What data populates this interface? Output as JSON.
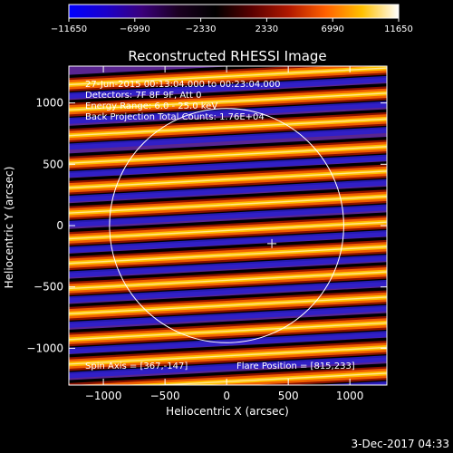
{
  "chart_data": {
    "type": "heatmap",
    "title": "Reconstructed RHESSI Image",
    "xlabel": "Heliocentric X (arcsec)",
    "ylabel": "Heliocentric Y (arcsec)",
    "xlim": [
      -1280,
      1300
    ],
    "ylim": [
      -1300,
      1300
    ],
    "xticks": [
      -1000,
      -500,
      0,
      500,
      1000
    ],
    "yticks": [
      -1000,
      -500,
      0,
      500,
      1000
    ],
    "xtick_labels": [
      "−1000",
      "−500",
      "0",
      "500",
      "1000"
    ],
    "ytick_labels": [
      "−1000",
      "−500",
      "0",
      "500",
      "1000"
    ],
    "colorbar": {
      "ticks": [
        -11650,
        -6990,
        -2330,
        2330,
        6990,
        11650
      ],
      "tick_labels": [
        "−11650",
        "−6990",
        "−2330",
        "2330",
        "6990",
        "11650"
      ],
      "range": [
        -11650,
        11650
      ],
      "colors": [
        "#0000ff",
        "#1a00cc",
        "#3a007a",
        "#1a0020",
        "#000000",
        "#5a0000",
        "#b01800",
        "#ff6000",
        "#ffc000",
        "#ffffff"
      ]
    },
    "stripe_band_centers_arcsec": [
      1215,
      1010,
      800,
      575,
      375,
      170,
      -40,
      -240,
      -445,
      -650,
      -860,
      -1060,
      -1270
    ],
    "solar_disk": {
      "center": [
        0,
        0
      ],
      "radius_arcsec": 950,
      "color": "#ffffff"
    },
    "flare_marker": {
      "position": [
        367,
        -147
      ],
      "symbol": "+"
    }
  },
  "info": {
    "line1": "27-Jun-2015 00:13:04.000 to 00:23:04.000",
    "line2": "Detectors: 7F 8F 9F, Att 0",
    "line3": "Energy Range: 6.0 - 25.0 keV",
    "line4": "Back Projection   Total Counts: 1.76E+04",
    "spin_axis": "Spin Axis = [367,-147]",
    "flare_position": "Flare Position = [815,233]"
  },
  "footer": {
    "date": "3-Dec-2017 04:33"
  }
}
